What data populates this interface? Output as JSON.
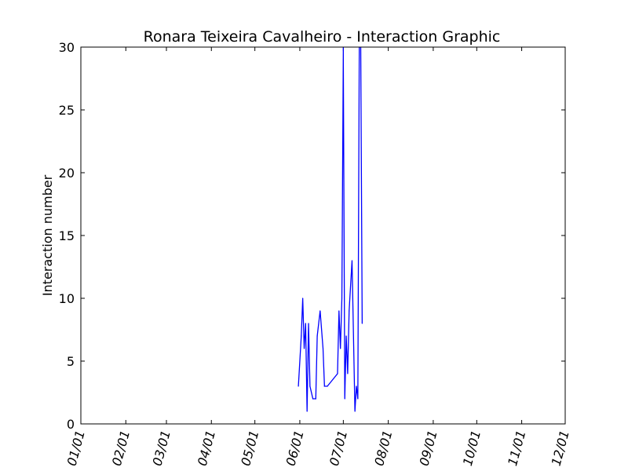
{
  "chart_data": {
    "type": "line",
    "title": "Ronara Teixeira Cavalheiro - Interaction Graphic",
    "xlabel": "",
    "ylabel": "Interaction number",
    "ylim": [
      0,
      30
    ],
    "yticks": [
      0,
      5,
      10,
      15,
      20,
      25,
      30
    ],
    "xticks": [
      "01/01",
      "02/01",
      "03/01",
      "04/01",
      "05/01",
      "06/01",
      "07/01",
      "08/01",
      "09/01",
      "10/01",
      "11/01",
      "12/01"
    ],
    "grid": false,
    "line_color": "#0000ff",
    "series": [
      {
        "x": [
          "05/31",
          "06/02",
          "06/03",
          "06/04",
          "06/05",
          "06/06",
          "06/07",
          "06/08",
          "06/10",
          "06/12",
          "06/13",
          "06/15",
          "06/17",
          "06/18",
          "06/20",
          "06/27",
          "06/28",
          "06/29",
          "06/30",
          "07/01",
          "07/01",
          "07/02",
          "07/03",
          "07/04",
          "07/05",
          "07/07",
          "07/09",
          "07/10",
          "07/11",
          "07/12",
          "07/13",
          "07/14"
        ],
        "y": [
          3,
          7,
          10,
          6,
          8,
          1,
          8,
          3,
          2,
          2,
          7,
          9,
          6,
          3,
          3,
          4,
          9,
          6,
          10,
          30,
          29,
          2,
          7,
          4,
          9,
          13,
          1,
          3,
          2,
          30,
          30,
          8
        ]
      }
    ]
  }
}
